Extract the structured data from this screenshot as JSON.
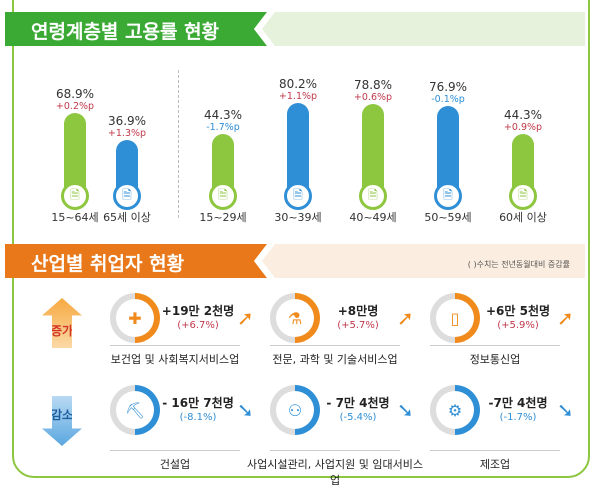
{
  "colors": {
    "green": "#8dc63f",
    "blue": "#2f8fd6",
    "orange": "#f08a1c",
    "red": "#c0394b",
    "banner_green": "#3aaa35",
    "banner_orange": "#e8781a"
  },
  "section1": {
    "title": "연령계층별 고용률 현황"
  },
  "chart_data": {
    "type": "bar",
    "title": "연령계층별 고용률 현황",
    "unit": "%",
    "categories": [
      "15~64세",
      "65세 이상",
      "15~29세",
      "30~39세",
      "40~49세",
      "50~59세",
      "60세 이상"
    ],
    "values": [
      68.9,
      36.9,
      44.3,
      80.2,
      78.8,
      76.9,
      44.3
    ],
    "value_labels": [
      "68.9%",
      "36.9%",
      "44.3%",
      "80.2%",
      "78.8%",
      "76.9%",
      "44.3%"
    ],
    "changes": [
      "+0.2%p",
      "+1.3%p",
      "-1.7%p",
      "+1.1%p",
      "+0.6%p",
      "-0.1%p",
      "+0.9%p"
    ],
    "bar_colors": [
      "green",
      "blue",
      "green",
      "blue",
      "green",
      "blue",
      "green"
    ],
    "icon": "document-search-icon"
  },
  "section2": {
    "title": "산업별 취업자 현황",
    "note": "( )수치는 전년동월대비 증감률",
    "increase_label": "증가",
    "decrease_label": "감소",
    "increase": [
      {
        "amount": "+19만 2천명",
        "pct": "(+6.7%)",
        "industry": "보건업 및 사회복지서비스업",
        "icon": "first-aid-kit-icon",
        "glyph": "✚"
      },
      {
        "amount": "+8만명",
        "pct": "(+5.7%)",
        "industry": "전문, 과학 및 기술서비스업",
        "icon": "flask-icon",
        "glyph": "⚗"
      },
      {
        "amount": "+6만 5천명",
        "pct": "(+5.9%)",
        "industry": "정보통신업",
        "icon": "phone-icon",
        "glyph": "▯"
      }
    ],
    "decrease": [
      {
        "amount": "- 16만 7천명",
        "pct": "(-8.1%)",
        "industry": "건설업",
        "icon": "excavator-icon",
        "glyph": "⛏"
      },
      {
        "amount": "- 7만 4천명",
        "pct": "(-5.4%)",
        "industry": "사업시설관리, 사업지원 및 임대서비스업",
        "icon": "people-search-icon",
        "glyph": "⚇"
      },
      {
        "amount": "-7만 4천명",
        "pct": "(-1.7%)",
        "industry": "제조업",
        "icon": "gear-icon",
        "glyph": "⚙"
      }
    ]
  }
}
